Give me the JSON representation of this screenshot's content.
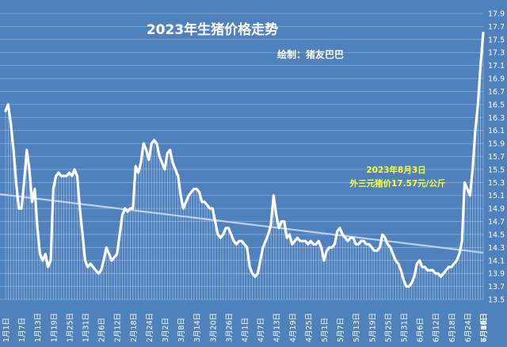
{
  "chart_data": {
    "type": "line",
    "title": "2023年生猪价格走势",
    "subtitle": "绘制：猪友巴巴",
    "annotation": [
      "2023年8月3日",
      "外三元猪价17.57元/公斤"
    ],
    "ylim": [
      13.5,
      17.9
    ],
    "yticks": [
      "13.5",
      "13.7",
      "13.9",
      "14.1",
      "14.3",
      "14.5",
      "14.7",
      "14.9",
      "15.1",
      "15.3",
      "15.5",
      "15.7",
      "15.9",
      "16.1",
      "16.3",
      "16.5",
      "16.7",
      "16.9",
      "17.1",
      "17.3",
      "17.5",
      "17.7",
      "17.9"
    ],
    "xticks": [
      "1月1日",
      "1月7日",
      "1月13日",
      "1月19日",
      "1月25日",
      "1月31日",
      "2月6日",
      "2月12日",
      "2月18日",
      "2月24日",
      "3月2日",
      "3月8日",
      "3月14日",
      "3月20日",
      "3月26日",
      "4月1日",
      "4月7日",
      "4月13日",
      "4月19日",
      "4月25日",
      "5月1日",
      "5月7日",
      "5月13日",
      "5月19日",
      "5月25日",
      "5月31日",
      "6月6日",
      "6月12日",
      "6月18日",
      "6月24日",
      "6月30日",
      "7月6日",
      "7月12日",
      "7月18日",
      "7月24日",
      "7月30日"
    ],
    "xtick_step_days": 6,
    "series": [
      {
        "values": [
          16.4,
          16.5,
          16.2,
          15.8,
          15.3,
          14.9,
          14.9,
          15.3,
          15.8,
          15.5,
          15.0,
          15.2,
          14.6,
          14.2,
          14.1,
          14.2,
          14.0,
          14.1,
          15.2,
          15.4,
          15.45,
          15.4,
          15.4,
          15.4,
          15.45,
          15.4,
          15.5,
          15.4,
          14.9,
          14.5,
          14.1,
          14.0,
          14.05,
          14.0,
          13.95,
          13.9,
          13.95,
          14.1,
          14.3,
          14.2,
          14.1,
          14.15,
          14.2,
          14.5,
          14.8,
          14.9,
          14.85,
          14.9,
          14.9,
          15.55,
          15.45,
          15.6,
          15.9,
          15.8,
          15.65,
          15.9,
          15.95,
          15.9,
          15.7,
          15.6,
          15.5,
          15.75,
          15.8,
          15.6,
          15.5,
          15.4,
          15.1,
          14.9,
          15.0,
          15.1,
          15.15,
          15.2,
          15.2,
          15.15,
          15.0,
          15.0,
          14.95,
          14.9,
          14.9,
          14.7,
          14.5,
          14.45,
          14.5,
          14.6,
          14.6,
          14.5,
          14.4,
          14.35,
          14.4,
          14.4,
          14.35,
          14.3,
          14.0,
          13.9,
          13.85,
          13.9,
          14.1,
          14.3,
          14.4,
          14.5,
          14.65,
          15.1,
          14.8,
          14.6,
          14.7,
          14.7,
          14.45,
          14.5,
          14.35,
          14.4,
          14.45,
          14.4,
          14.4,
          14.4,
          14.35,
          14.4,
          14.35,
          14.35,
          14.4,
          14.3,
          14.1,
          14.25,
          14.3,
          14.3,
          14.35,
          14.55,
          14.6,
          14.5,
          14.45,
          14.4,
          14.45,
          14.45,
          14.35,
          14.35,
          14.4,
          14.4,
          14.35,
          14.35,
          14.3,
          14.25,
          14.25,
          14.3,
          14.5,
          14.45,
          14.35,
          14.3,
          14.2,
          14.1,
          14.05,
          13.95,
          13.8,
          13.7,
          13.7,
          13.75,
          13.85,
          14.05,
          14.1,
          14.0,
          14.0,
          13.95,
          13.95,
          13.95,
          13.9,
          13.9,
          13.85,
          13.9,
          13.95,
          14.0,
          14.0,
          14.05,
          14.1,
          14.2,
          14.4,
          15.3,
          15.2,
          15.1,
          15.5,
          16.1,
          16.5,
          17.1,
          17.6
        ]
      },
      {
        "name": "trend",
        "values": [
          15.12,
          14.22
        ]
      }
    ]
  }
}
